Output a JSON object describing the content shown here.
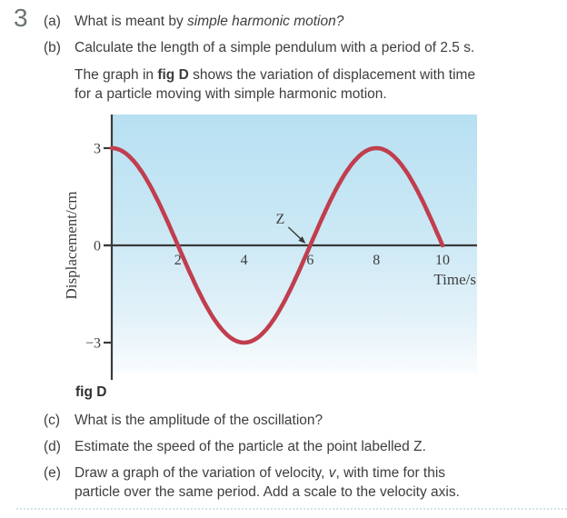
{
  "question": {
    "number": "3",
    "part_a": {
      "label": "(a)",
      "before": "What is meant by ",
      "italic": "simple harmonic motion?"
    },
    "part_b": {
      "label": "(b)",
      "text": "Calculate the length of a simple pendulum with a period of 2.5 s."
    },
    "intro": {
      "before": "The graph in ",
      "bold": "fig D",
      "after": " shows the variation of displacement with time for a particle moving with simple harmonic motion."
    },
    "part_c": {
      "label": "(c)",
      "text": "What is the amplitude of the oscillation?"
    },
    "part_d": {
      "label": "(d)",
      "text": "Estimate the speed of the particle at the point labelled Z."
    },
    "part_e": {
      "label": "(e)",
      "before": "Draw a graph of the variation of velocity, ",
      "italic": "v",
      "after": ", with time for this particle over the same period. Add a scale to the velocity axis."
    }
  },
  "figure": {
    "caption": "fig D"
  },
  "chart_data": {
    "type": "line",
    "title": "",
    "xlabel": "Time/s",
    "ylabel": "Displacement/cm",
    "xlim": [
      0,
      11.05
    ],
    "ylim": [
      -4,
      4
    ],
    "x_ticks": [
      2,
      4,
      6,
      8,
      10
    ],
    "y_ticks": [
      3,
      0,
      -3
    ],
    "y_tick_labels": [
      "3",
      "0",
      "−3"
    ],
    "grid": false,
    "legend": [],
    "amplitude_cm": 3,
    "period_s": 8,
    "model": "displacement = 3 cos(2πt/8) cm, 0 ≤ t ≤ 10 s",
    "x": [
      0,
      1,
      2,
      3,
      4,
      5,
      6,
      7,
      8,
      9,
      10
    ],
    "y": [
      3,
      2.12,
      0,
      -2.12,
      -3,
      -2.12,
      0,
      2.12,
      3,
      2.12,
      0
    ],
    "annotations": [
      {
        "label": "Z",
        "x": 6,
        "y": 0
      }
    ],
    "line_color": "#c03e4e",
    "axis_color": "#3a3a3a",
    "plot_bg_top": "#b7e0f2",
    "plot_bg_mid": "#cde9f5",
    "plot_bg_low": "#e4f2f9",
    "plot_bg_bottom": "#f9fcfe"
  }
}
